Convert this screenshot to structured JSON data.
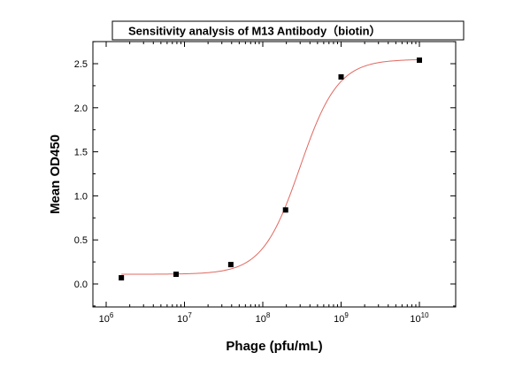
{
  "chart_data": {
    "type": "scatter",
    "title": "Sensitivity analysis of M13 Antibody（biotin）",
    "xlabel": "Phage (pfu/mL)",
    "ylabel": "Mean OD450",
    "xscale": "log",
    "xlim": [
      1000000,
      10000000000
    ],
    "ylim": [
      -0.25,
      2.75
    ],
    "xticks": [
      {
        "value": 1000000,
        "base": "10",
        "exp": "6"
      },
      {
        "value": 10000000,
        "base": "10",
        "exp": "7"
      },
      {
        "value": 100000000,
        "base": "10",
        "exp": "8"
      },
      {
        "value": 1000000000,
        "base": "10",
        "exp": "9"
      },
      {
        "value": 10000000000,
        "base": "10",
        "exp": "10"
      }
    ],
    "yticks": [
      {
        "value": 0.0,
        "label": "0.0"
      },
      {
        "value": 0.5,
        "label": "0.5"
      },
      {
        "value": 1.0,
        "label": "1.0"
      },
      {
        "value": 1.5,
        "label": "1.5"
      },
      {
        "value": 2.0,
        "label": "2.0"
      },
      {
        "value": 2.5,
        "label": "2.5"
      }
    ],
    "grid": false,
    "series": [
      {
        "type": "scatter",
        "color": "#000000",
        "marker": "square",
        "x": [
          1562500,
          7812500,
          39062500,
          195312500,
          1000000000,
          10000000000
        ],
        "y": [
          0.07,
          0.11,
          0.22,
          0.84,
          2.35,
          2.54
        ]
      },
      {
        "type": "fit-line",
        "color": "#e0685f",
        "model": "4PL",
        "params": {
          "bottom": 0.11,
          "top": 2.55,
          "ec50": 300000000,
          "hill": 1.8
        },
        "x_range": [
          1562500,
          10000000000
        ]
      }
    ]
  }
}
